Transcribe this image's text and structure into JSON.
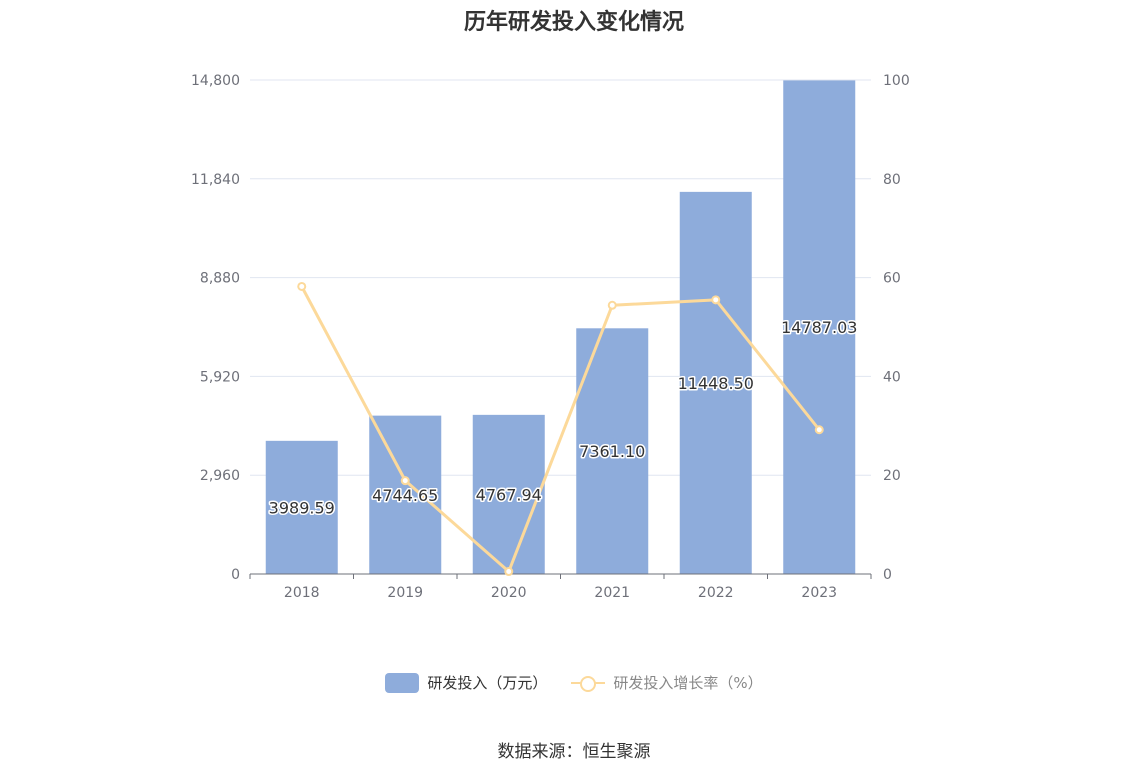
{
  "chart_data": {
    "type": "bar",
    "title": "历年研发投入变化情况",
    "categories": [
      "2018",
      "2019",
      "2020",
      "2021",
      "2022",
      "2023"
    ],
    "series": [
      {
        "name": "研发投入（万元）",
        "type": "bar",
        "axis": "left",
        "values": [
          3989.59,
          4744.65,
          4767.94,
          7361.1,
          11448.5,
          14787.03
        ],
        "labels": [
          "3989.59",
          "4744.65",
          "4767.94",
          "7361.10",
          "11448.50",
          "14787.03"
        ],
        "color": "#8eacdb"
      },
      {
        "name": "研发投入增长率（%）",
        "type": "line",
        "axis": "right",
        "values": [
          58.2,
          18.9,
          0.5,
          54.4,
          55.5,
          29.2
        ],
        "color": "#fcd99a"
      }
    ],
    "y_left": {
      "min": 0,
      "max": 14800,
      "ticks": [
        "0",
        "2,960",
        "5,920",
        "8,880",
        "11,840",
        "14,800"
      ]
    },
    "y_right": {
      "min": 0,
      "max": 100,
      "ticks": [
        "0",
        "20",
        "40",
        "60",
        "80",
        "100"
      ]
    },
    "grid": true,
    "legend_position": "bottom"
  },
  "footer": {
    "source": "数据来源：恒生聚源"
  }
}
